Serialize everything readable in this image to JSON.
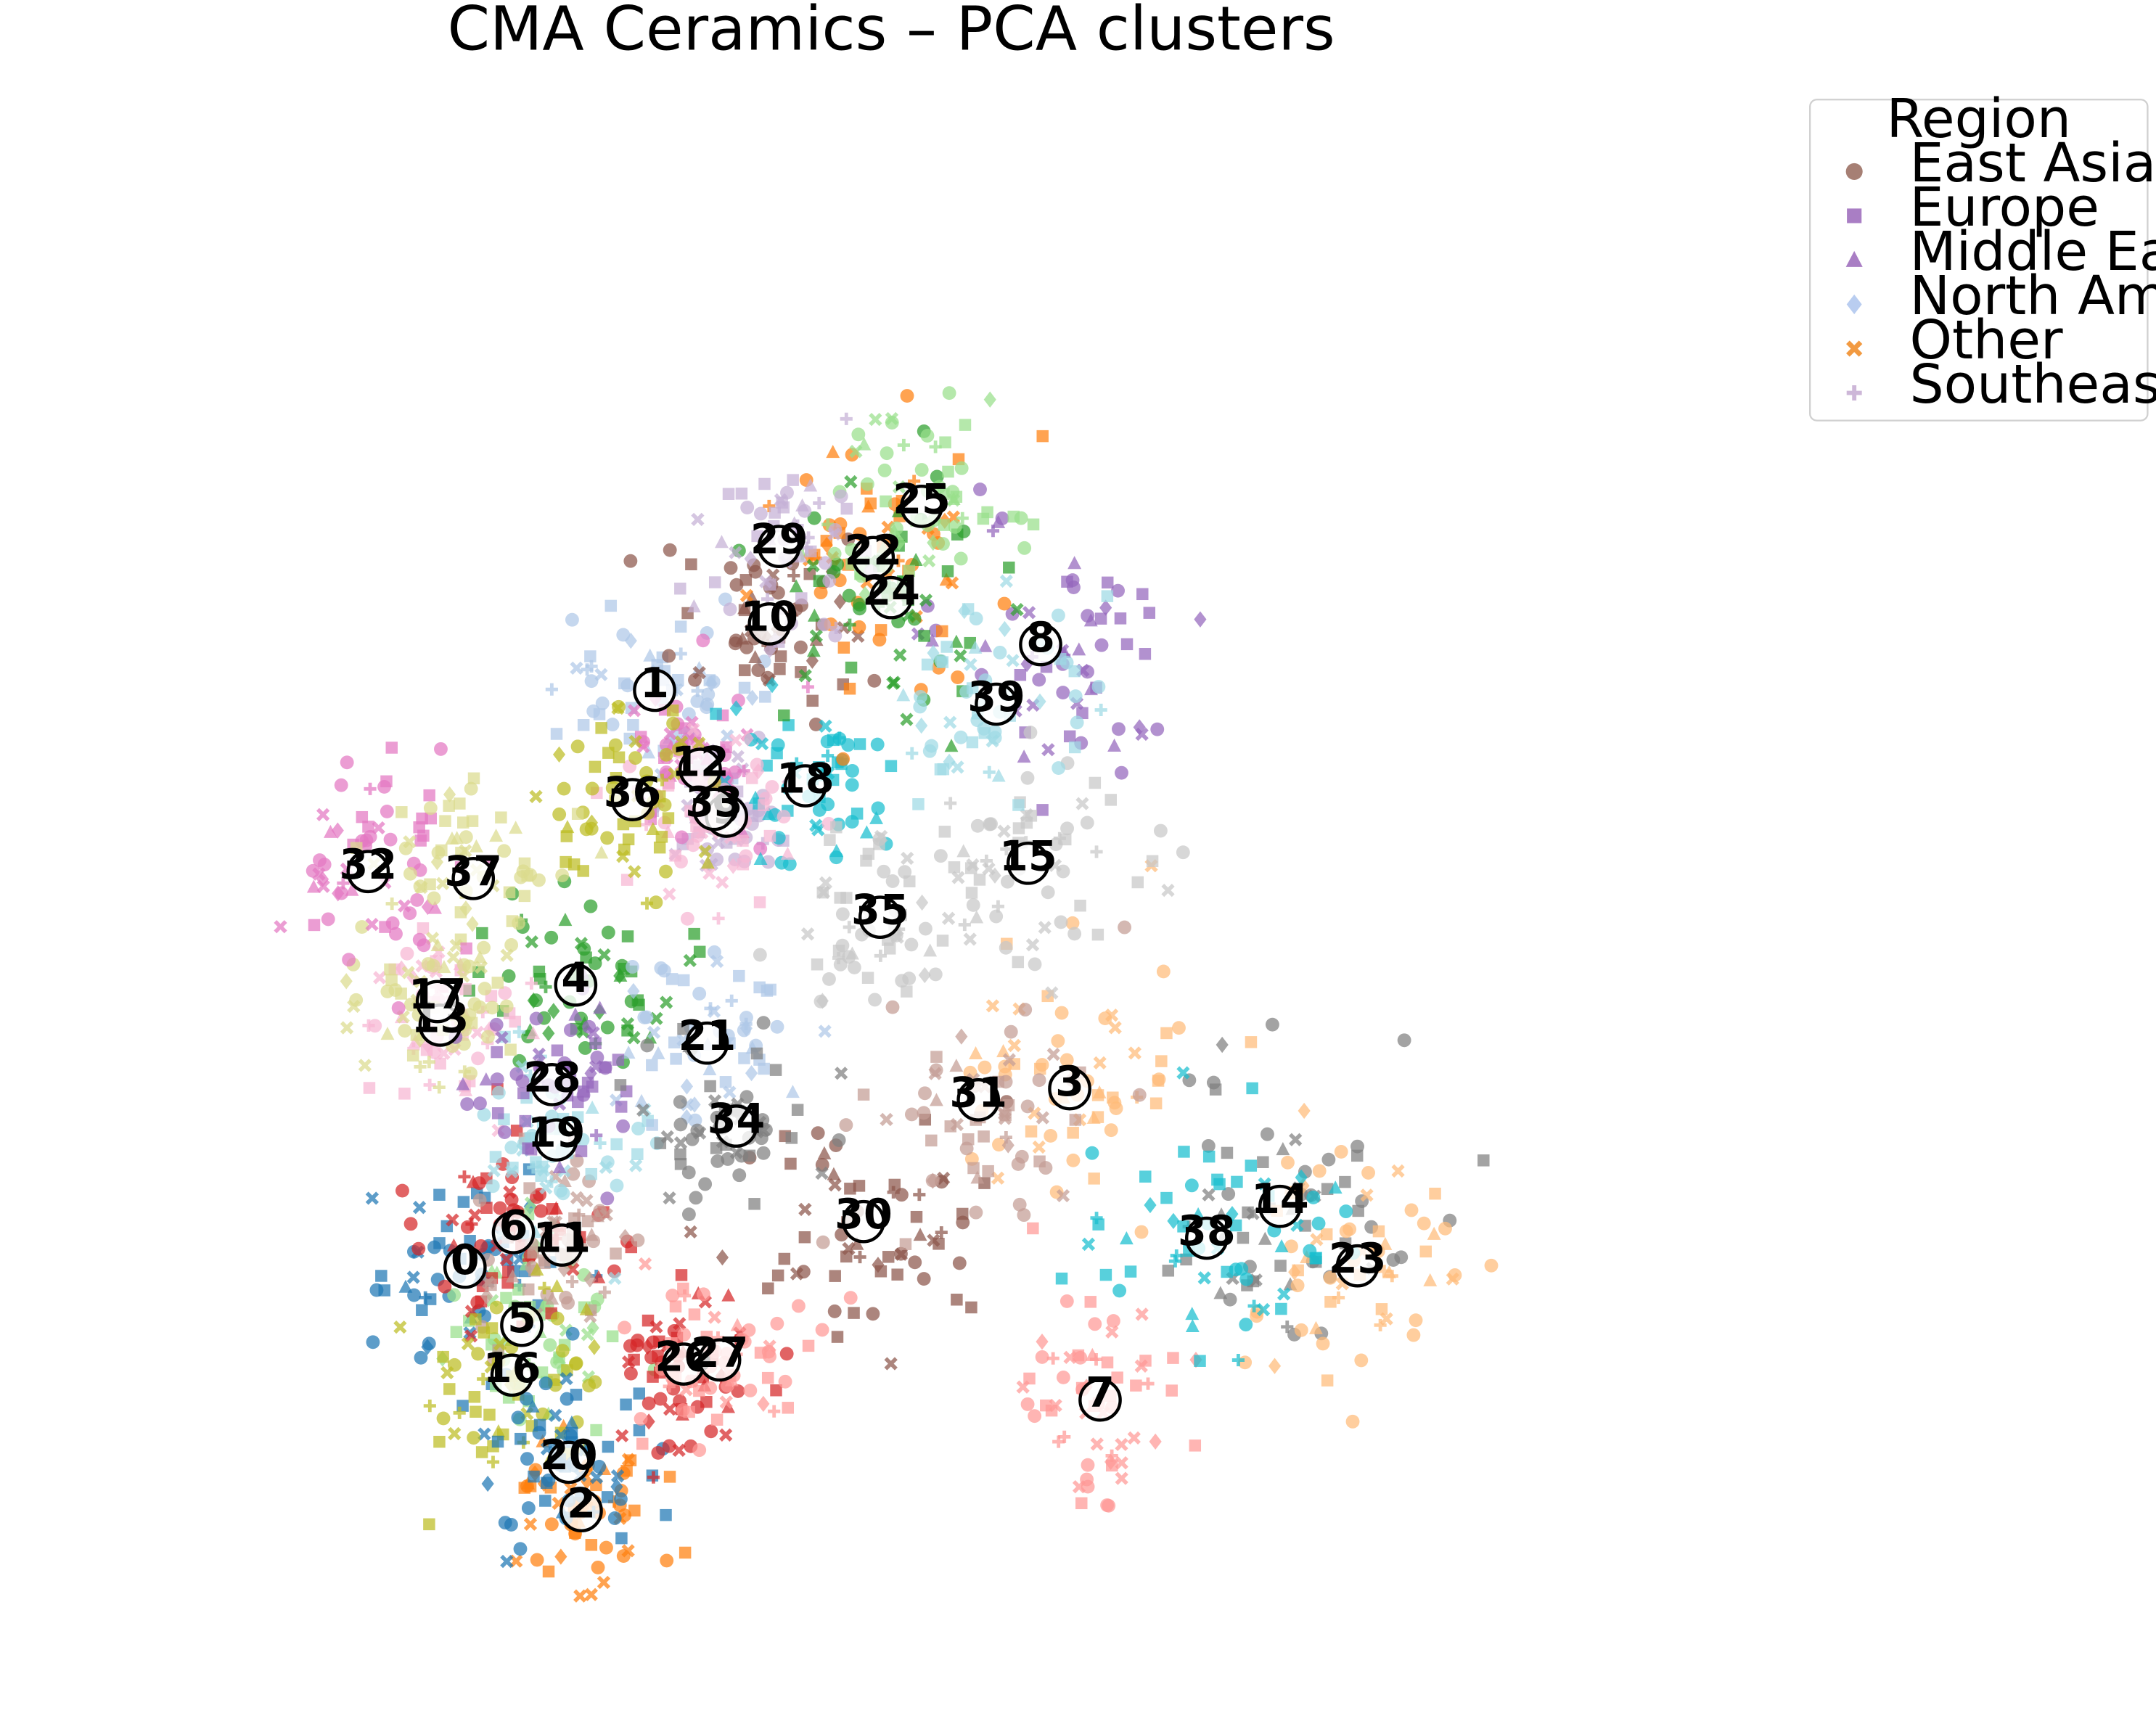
{
  "chart_data": {
    "type": "scatter",
    "title": "CMA Ceramics – PCA clusters",
    "xlabel": "",
    "ylabel": "",
    "xlim": [
      0,
      1558
    ],
    "ylim": [
      0,
      1244
    ],
    "y_inverted": true,
    "axes_visible": false,
    "grid": false,
    "legend": {
      "title": "Region",
      "placement": "upper-right-outside",
      "entries": [
        {
          "name": "East Asia",
          "marker": "circle"
        },
        {
          "name": "Europe",
          "marker": "square"
        },
        {
          "name": "Middle East",
          "marker": "triangle"
        },
        {
          "name": "North America",
          "marker": "diamond"
        },
        {
          "name": "Other",
          "marker": "x"
        },
        {
          "name": "Southeast Asia",
          "marker": "plus"
        }
      ]
    },
    "region_markers": {
      "East Asia": "circle",
      "Europe": "square",
      "Middle East": "triangle",
      "North America": "diamond",
      "Other": "x",
      "Southeast Asia": "plus"
    },
    "legend_marker_color": "#a0a0c8",
    "cluster_colors": [
      "#1f77b4",
      "#aec7e8",
      "#ff7f0e",
      "#ffbb78",
      "#2ca02c",
      "#98df8a",
      "#d62728",
      "#ff9896",
      "#9467bd",
      "#c5b0d5",
      "#8c564b",
      "#c49c94",
      "#e377c2",
      "#f7b6d2",
      "#7f7f7f",
      "#c7c7c7",
      "#bcbd22",
      "#dbdb8d",
      "#17becf",
      "#9edae5"
    ],
    "cluster_centroids": [
      {
        "id": 0,
        "x": 336,
        "y": 916,
        "spread": 70
      },
      {
        "id": 1,
        "x": 473,
        "y": 499,
        "spread": 60
      },
      {
        "id": 2,
        "x": 420,
        "y": 1092,
        "spread": 55
      },
      {
        "id": 3,
        "x": 773,
        "y": 787,
        "spread": 80
      },
      {
        "id": 4,
        "x": 416,
        "y": 712,
        "spread": 60
      },
      {
        "id": 5,
        "x": 377,
        "y": 958,
        "spread": 60
      },
      {
        "id": 6,
        "x": 371,
        "y": 891,
        "spread": 60
      },
      {
        "id": 7,
        "x": 795,
        "y": 1012,
        "spread": 75
      },
      {
        "id": 8,
        "x": 752,
        "y": 466,
        "spread": 80
      },
      {
        "id": 9,
        "x": 525,
        "y": 590,
        "spread": 40
      },
      {
        "id": 10,
        "x": 556,
        "y": 451,
        "spread": 55
      },
      {
        "id": 11,
        "x": 406,
        "y": 900,
        "spread": 55
      },
      {
        "id": 12,
        "x": 506,
        "y": 556,
        "spread": 50
      },
      {
        "id": 13,
        "x": 318,
        "y": 741,
        "spread": 55
      },
      {
        "id": 14,
        "x": 925,
        "y": 872,
        "spread": 90
      },
      {
        "id": 15,
        "x": 743,
        "y": 624,
        "spread": 70
      },
      {
        "id": 16,
        "x": 370,
        "y": 994,
        "spread": 55
      },
      {
        "id": 17,
        "x": 316,
        "y": 724,
        "spread": 55
      },
      {
        "id": 18,
        "x": 582,
        "y": 568,
        "spread": 55
      },
      {
        "id": 19,
        "x": 402,
        "y": 824,
        "spread": 55
      },
      {
        "id": 20,
        "x": 411,
        "y": 1057,
        "spread": 55
      },
      {
        "id": 21,
        "x": 511,
        "y": 754,
        "spread": 60
      },
      {
        "id": 22,
        "x": 631,
        "y": 403,
        "spread": 70
      },
      {
        "id": 23,
        "x": 981,
        "y": 915,
        "spread": 85
      },
      {
        "id": 24,
        "x": 644,
        "y": 432,
        "spread": 70
      },
      {
        "id": 25,
        "x": 666,
        "y": 366,
        "spread": 70
      },
      {
        "id": 26,
        "x": 494,
        "y": 986,
        "spread": 60
      },
      {
        "id": 27,
        "x": 520,
        "y": 983,
        "spread": 60
      },
      {
        "id": 28,
        "x": 399,
        "y": 784,
        "spread": 55
      },
      {
        "id": 29,
        "x": 563,
        "y": 395,
        "spread": 60
      },
      {
        "id": 30,
        "x": 624,
        "y": 883,
        "spread": 80
      },
      {
        "id": 31,
        "x": 707,
        "y": 795,
        "spread": 75
      },
      {
        "id": 32,
        "x": 266,
        "y": 630,
        "spread": 65
      },
      {
        "id": 33,
        "x": 516,
        "y": 585,
        "spread": 55
      },
      {
        "id": 34,
        "x": 532,
        "y": 814,
        "spread": 60
      },
      {
        "id": 35,
        "x": 636,
        "y": 663,
        "spread": 65
      },
      {
        "id": 36,
        "x": 457,
        "y": 578,
        "spread": 55
      },
      {
        "id": 37,
        "x": 342,
        "y": 635,
        "spread": 60
      },
      {
        "id": 38,
        "x": 872,
        "y": 895,
        "spread": 85
      },
      {
        "id": 39,
        "x": 720,
        "y": 509,
        "spread": 75
      }
    ],
    "points_per_cluster": 60
  }
}
